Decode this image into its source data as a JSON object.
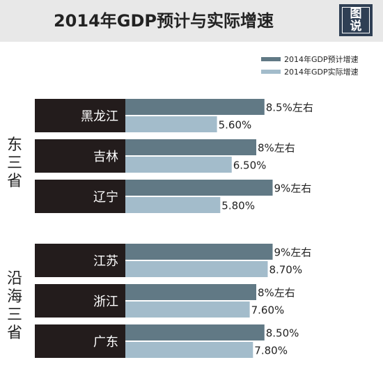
{
  "title": "2014年GDP预计与实际增速",
  "logo_text": "图说",
  "legend": [
    {
      "label": "2014年GDP预计增速",
      "color": "#617985"
    },
    {
      "label": "2014年GDP实际增速",
      "color": "#a3bccb"
    }
  ],
  "groups": [
    {
      "label": "东三省"
    },
    {
      "label": "沿海三省"
    }
  ],
  "colors": {
    "predicted": "#617985",
    "actual": "#a3bccb",
    "province_bg": "#231c1c"
  },
  "chart_data": {
    "type": "bar",
    "orientation": "horizontal",
    "title": "2014年GDP预计与实际增速",
    "categories": [
      "黑龙江",
      "吉林",
      "辽宁",
      "江苏",
      "浙江",
      "广东"
    ],
    "category_groups": [
      "东三省",
      "东三省",
      "东三省",
      "沿海三省",
      "沿海三省",
      "沿海三省"
    ],
    "series": [
      {
        "name": "2014年GDP预计增速",
        "values": [
          8.5,
          8,
          9,
          9,
          8,
          8.5
        ],
        "labels": [
          "8.5%左右",
          "8%左右",
          "9%左右",
          "9%左右",
          "8%左右",
          "8.50%"
        ]
      },
      {
        "name": "2014年GDP实际增速",
        "values": [
          5.6,
          6.5,
          5.8,
          8.7,
          7.6,
          7.8
        ],
        "labels": [
          "5.60%",
          "6.50%",
          "5.80%",
          "8.70%",
          "7.60%",
          "7.80%"
        ]
      }
    ],
    "legend_position": "top-right",
    "grid": false
  }
}
